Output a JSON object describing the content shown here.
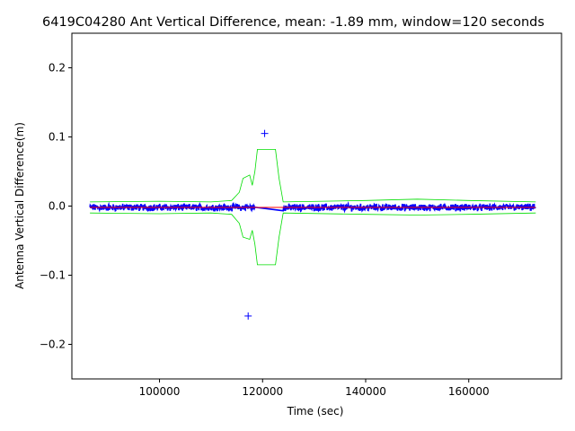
{
  "chart_data": {
    "type": "line",
    "title": "6419C04280 Ant Vertical Difference, mean: -1.89 mm, window=120 seconds",
    "xlabel": "Time (sec)",
    "ylabel": "Antenna Vertical Difference(m)",
    "xlim": [
      83000,
      178000
    ],
    "ylim": [
      -0.25,
      0.25
    ],
    "xticks": [
      100000,
      120000,
      140000,
      160000
    ],
    "xtick_labels": [
      "100000",
      "120000",
      "140000",
      "160000"
    ],
    "yticks": [
      -0.2,
      -0.1,
      0.0,
      0.1,
      0.2
    ],
    "ytick_labels": [
      "−0.2",
      "−0.1",
      "0.0",
      "0.1",
      "0.2"
    ],
    "grid": false,
    "series": [
      {
        "style": "blue dense markers",
        "color": "#0000ff",
        "x_range": [
          86500,
          173000
        ],
        "center_y": -0.002,
        "typical_spread": 0.004,
        "outliers": [
          {
            "x": 120400,
            "y": 0.105
          },
          {
            "x": 117200,
            "y": -0.159
          }
        ]
      },
      {
        "style": "green envelope",
        "color": "#00dd00",
        "upper": [
          {
            "x": 86500,
            "y": 0.006
          },
          {
            "x": 100000,
            "y": 0.007
          },
          {
            "x": 110000,
            "y": 0.006
          },
          {
            "x": 114000,
            "y": 0.008
          },
          {
            "x": 115500,
            "y": 0.02
          },
          {
            "x": 116200,
            "y": 0.04
          },
          {
            "x": 117500,
            "y": 0.045
          },
          {
            "x": 118000,
            "y": 0.03
          },
          {
            "x": 118500,
            "y": 0.05
          },
          {
            "x": 119000,
            "y": 0.082
          },
          {
            "x": 122500,
            "y": 0.082
          },
          {
            "x": 123200,
            "y": 0.04
          },
          {
            "x": 124000,
            "y": 0.006
          },
          {
            "x": 140000,
            "y": 0.008
          },
          {
            "x": 150000,
            "y": 0.01
          },
          {
            "x": 160000,
            "y": 0.008
          },
          {
            "x": 173000,
            "y": 0.006
          }
        ],
        "lower": [
          {
            "x": 86500,
            "y": -0.01
          },
          {
            "x": 100000,
            "y": -0.011
          },
          {
            "x": 110000,
            "y": -0.01
          },
          {
            "x": 114000,
            "y": -0.012
          },
          {
            "x": 115500,
            "y": -0.025
          },
          {
            "x": 116200,
            "y": -0.045
          },
          {
            "x": 117500,
            "y": -0.048
          },
          {
            "x": 118000,
            "y": -0.035
          },
          {
            "x": 118500,
            "y": -0.055
          },
          {
            "x": 119000,
            "y": -0.085
          },
          {
            "x": 122500,
            "y": -0.085
          },
          {
            "x": 123200,
            "y": -0.045
          },
          {
            "x": 124000,
            "y": -0.01
          },
          {
            "x": 140000,
            "y": -0.012
          },
          {
            "x": 150000,
            "y": -0.013
          },
          {
            "x": 160000,
            "y": -0.012
          },
          {
            "x": 173000,
            "y": -0.01
          }
        ]
      },
      {
        "style": "red mean line",
        "color": "#ff0000",
        "x_range": [
          86500,
          173000
        ],
        "y": -0.002
      }
    ]
  }
}
